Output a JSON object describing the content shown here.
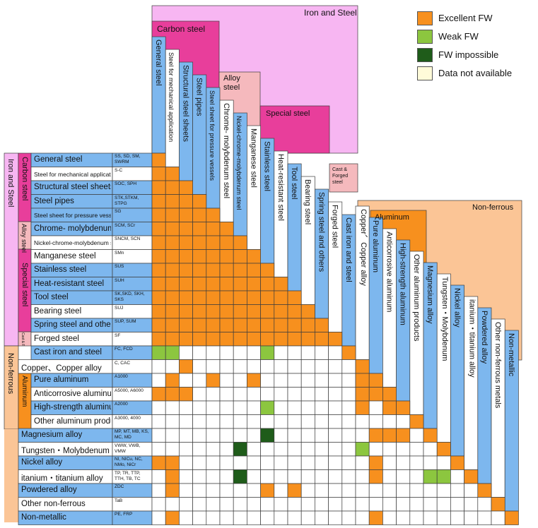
{
  "colors": {
    "excellent": "#f7901e",
    "weak": "#8cc63f",
    "impossible": "#1f5c1a",
    "na": "#fffbd9",
    "matrix_bg": "#ffffff",
    "iron_group": "#f7b6f2",
    "carbon_group": "#e83e9b",
    "alloy_group": "#f5b9bd",
    "special_group": "#e83e9b",
    "cast_group": "#f5b9bd",
    "nonferrous_group": "#fbc596",
    "aluminum_group": "#f7901e",
    "steel_label": "#7db7ee",
    "light_label": "#ffffff",
    "grid": "#3d3d3d"
  },
  "legend": [
    {
      "key": "E",
      "label": "Excellent FW",
      "color_key": "excellent"
    },
    {
      "key": "W",
      "label": "Weak FW",
      "color_key": "weak"
    },
    {
      "key": "I",
      "label": "FW impossible",
      "color_key": "impossible"
    },
    {
      "key": "N",
      "label": "Data not available",
      "color_key": "na"
    }
  ],
  "groups": {
    "iron_top": "Iron and Steel",
    "carbon_top": "Carbon steel",
    "alloy_top": "Alloy steel",
    "special_top": "Special steel",
    "cast_top": "Cast & Forged steel",
    "nonferrous_top": "Non-ferrous",
    "aluminum_top": "Aluminum",
    "iron_left": "Iron and Steel",
    "carbon_left": "Carbon steel",
    "alloy_left": "Alloy steel",
    "special_left": "Special steel",
    "cast_left": "Cast & Forged steel",
    "nonferrous_left": "Non-ferrous",
    "aluminum_left": "Aluminum"
  },
  "chart_data": {
    "type": "table",
    "rows": [
      {
        "name": "General steel",
        "code": "SS, SD, SM, SWRM"
      },
      {
        "name": "Steel for mechanical application",
        "code": "S-C"
      },
      {
        "name": "Structural steel sheets",
        "code": "SOC, SPH"
      },
      {
        "name": "Steel pipes",
        "code": "STK,STKM, STPG"
      },
      {
        "name": "Steel sheet for pressure vessels",
        "code": "SG"
      },
      {
        "name": "Chrome- molybdenum steel",
        "code": "SCM, SCr"
      },
      {
        "name": "Nickel-chrome-molybdenum steel",
        "code": "SNCM, SCN"
      },
      {
        "name": "Manganese steel",
        "code": "SMn"
      },
      {
        "name": "Stainless steel",
        "code": "SUS"
      },
      {
        "name": "Heat-resistant steel",
        "code": "SUH"
      },
      {
        "name": "Tool steel",
        "code": "SK,SKD, SKH, SKS"
      },
      {
        "name": "Bearing steel",
        "code": "SUJ"
      },
      {
        "name": "Spring steel and others",
        "code": "SUP, SUM"
      },
      {
        "name": "Forged steel",
        "code": "SF"
      },
      {
        "name": "Cast iron and steel",
        "code": "FC, FCD"
      },
      {
        "name": "Copper、Copper alloy",
        "code": "C, CAC"
      },
      {
        "name": "Pure aluminum",
        "code": "A1000"
      },
      {
        "name": "Anticorrosive aluminum",
        "code": "A5000, A6000"
      },
      {
        "name": "High-strength aluminum",
        "code": "A2000"
      },
      {
        "name": "Other aluminum products",
        "code": "A3000, 4000"
      },
      {
        "name": "Magnesium alloy",
        "code": "MP, MT, MB, KS, MC, MD"
      },
      {
        "name": "Tungsten・Molybdenum",
        "code": "VWW, VWB, VMW"
      },
      {
        "name": "Nickel alloy",
        "code": "NI, NICu, NC, NMo, NiCr"
      },
      {
        "name": "itanium・titanium alloy",
        "code": "TP, TR, TTP, TTH, TB, TC"
      },
      {
        "name": "Powdered alloy",
        "code": "ZDC"
      },
      {
        "name": "Other non-ferrous",
        "code": "TaB"
      },
      {
        "name": "Non-metallic",
        "code": "PE, FRP"
      }
    ],
    "columns": [
      "General steel",
      "Steel for mechanical application",
      "Structural steel sheets",
      "Steel pipes",
      "Steel sheet for pressure vessels",
      "Chrome- molybdenum steel",
      "Nickel-chrome-molybdenum steel",
      "Manganese steel",
      "Stainless steel",
      "Heat-resistant steel",
      "Tool steel",
      "Bearing steel",
      "Spring steel and others",
      "Forged steel",
      "Cast iron and steel",
      "Copper、Copper alloy",
      "Pure aluminum",
      "Anticorrosive aluminum",
      "High-strength aluminum",
      "Other aluminum products",
      "Magnesium alloy",
      "Tungsten・Molybdenum",
      "Nickel alloy",
      "itanium・titanium alloy",
      "Powdered alloy",
      "Other non-ferrous metals",
      "Non-metallic"
    ],
    "matrix": [
      "E",
      "EE",
      "EEE",
      "EEEE",
      "EEEEE",
      "EEEEEE",
      "EEEEEEE",
      "EEEEEEEE",
      "EEEEEEEEE",
      "EEEEEEEEEE",
      "EEEEEEEEEEE",
      "EEEEEEEEEEEE",
      "EEEEEEEEEEEEE",
      "EEEEEEEEEEEEEE",
      "WWNNNNNNWNNNNNE",
      "NNENNNNNNNNNNNNE",
      "NENNENNENNNNNNNEE",
      "EEENNNNNNNNNNNNEEE",
      "NNNNNNNNWNNNNNNENEE",
      "NNNNNNNNNNNNNNNNNNNE",
      "NNNNNNNNINNNNNNNEEENE",
      "NNNNNNINNNNNNNNWNNNNNE",
      "EENNNNNNNNNNNNNNENNNNNE",
      "NENNNNINNNNNNNNNENNNWWNE",
      "NENNNNNNENENNNNNNNNNNNNNE",
      "NNNNNNNNNNNNNNNNNNNNNNNNNE",
      "NENNNNNNNNNNNNNNENNNNNNNNNE"
    ]
  }
}
